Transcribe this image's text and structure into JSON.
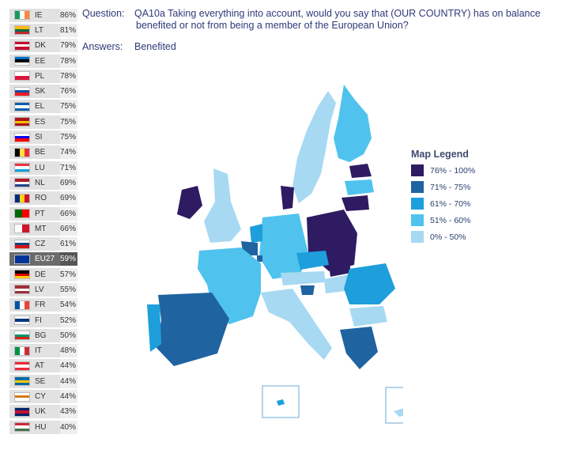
{
  "question": {
    "label": "Question:",
    "text": "QA10a Taking everything into account, would you say that (OUR COUNTRY) has on balance",
    "text_line2": "benefited or not from being a member of the European Union?",
    "answers_label": "Answers:",
    "answers_value": "Benefited"
  },
  "legend": {
    "title": "Map Legend",
    "items": [
      {
        "label": "76% - 100%",
        "color": "#2e1b62"
      },
      {
        "label": "71% - 75%",
        "color": "#1f63a1"
      },
      {
        "label": "61% - 70%",
        "color": "#1e9fdc"
      },
      {
        "label": "51% - 60%",
        "color": "#4fc3ee"
      },
      {
        "label": "0% - 50%",
        "color": "#a8d9f2"
      }
    ]
  },
  "chart_data": {
    "type": "table",
    "title": "",
    "xlabel": "",
    "ylabel": "",
    "categories": [
      "IE",
      "LT",
      "DK",
      "EE",
      "PL",
      "SK",
      "EL",
      "ES",
      "SI",
      "BE",
      "LU",
      "NL",
      "RO",
      "PT",
      "MT",
      "CZ",
      "EU27",
      "DE",
      "LV",
      "FR",
      "FI",
      "BG",
      "IT",
      "AT",
      "SE",
      "CY",
      "UK",
      "HU"
    ],
    "values": [
      "86%",
      "81%",
      "79%",
      "78%",
      "78%",
      "76%",
      "75%",
      "75%",
      "75%",
      "74%",
      "71%",
      "69%",
      "69%",
      "66%",
      "66%",
      "61%",
      "59%",
      "57%",
      "55%",
      "54%",
      "52%",
      "50%",
      "48%",
      "44%",
      "44%",
      "44%",
      "43%",
      "40%"
    ],
    "flags": [
      [
        "#169b62",
        "#ffffff",
        "#ff883e"
      ],
      [
        "#fdb913",
        "#006a44",
        "#c1272d"
      ],
      [
        "#c60c30",
        "#ffffff",
        "#c60c30"
      ],
      [
        "#0072ce",
        "#000000",
        "#ffffff"
      ],
      [
        "#ffffff",
        "#dc143c"
      ],
      [
        "#ffffff",
        "#0b4ea2",
        "#ee1c25"
      ],
      [
        "#0d5eaf",
        "#ffffff",
        "#0d5eaf"
      ],
      [
        "#aa151b",
        "#f1bf00",
        "#aa151b"
      ],
      [
        "#ffffff",
        "#0000ff",
        "#ff0000"
      ],
      [
        "#000000",
        "#fae042",
        "#ed2939"
      ],
      [
        "#ef3340",
        "#ffffff",
        "#00a3e0"
      ],
      [
        "#ae1c28",
        "#ffffff",
        "#21468b"
      ],
      [
        "#002b7f",
        "#fcd116",
        "#ce1126"
      ],
      [
        "#006600",
        "#ff0000"
      ],
      [
        "#ffffff",
        "#cf142b"
      ],
      [
        "#ffffff",
        "#11457e",
        "#d7141a"
      ],
      [
        "#003399"
      ],
      [
        "#000000",
        "#dd0000",
        "#ffce00"
      ],
      [
        "#9e3039",
        "#ffffff",
        "#9e3039"
      ],
      [
        "#0055a4",
        "#ffffff",
        "#ef4135"
      ],
      [
        "#ffffff",
        "#003580",
        "#ffffff"
      ],
      [
        "#ffffff",
        "#00966e",
        "#d62612"
      ],
      [
        "#009246",
        "#ffffff",
        "#ce2b37"
      ],
      [
        "#ed2939",
        "#ffffff",
        "#ed2939"
      ],
      [
        "#006aa7",
        "#fecc00",
        "#006aa7"
      ],
      [
        "#ffffff",
        "#d57800",
        "#ffffff"
      ],
      [
        "#012169",
        "#c8102e",
        "#012169"
      ],
      [
        "#ce2939",
        "#ffffff",
        "#477050"
      ]
    ],
    "flag_directions": [
      "v",
      "h",
      "h",
      "h",
      "h",
      "h",
      "h",
      "h",
      "h",
      "v",
      "h",
      "h",
      "v",
      "v",
      "v",
      "h",
      "v",
      "h",
      "h",
      "v",
      "h",
      "h",
      "v",
      "h",
      "h",
      "h",
      "h",
      "h"
    ]
  }
}
